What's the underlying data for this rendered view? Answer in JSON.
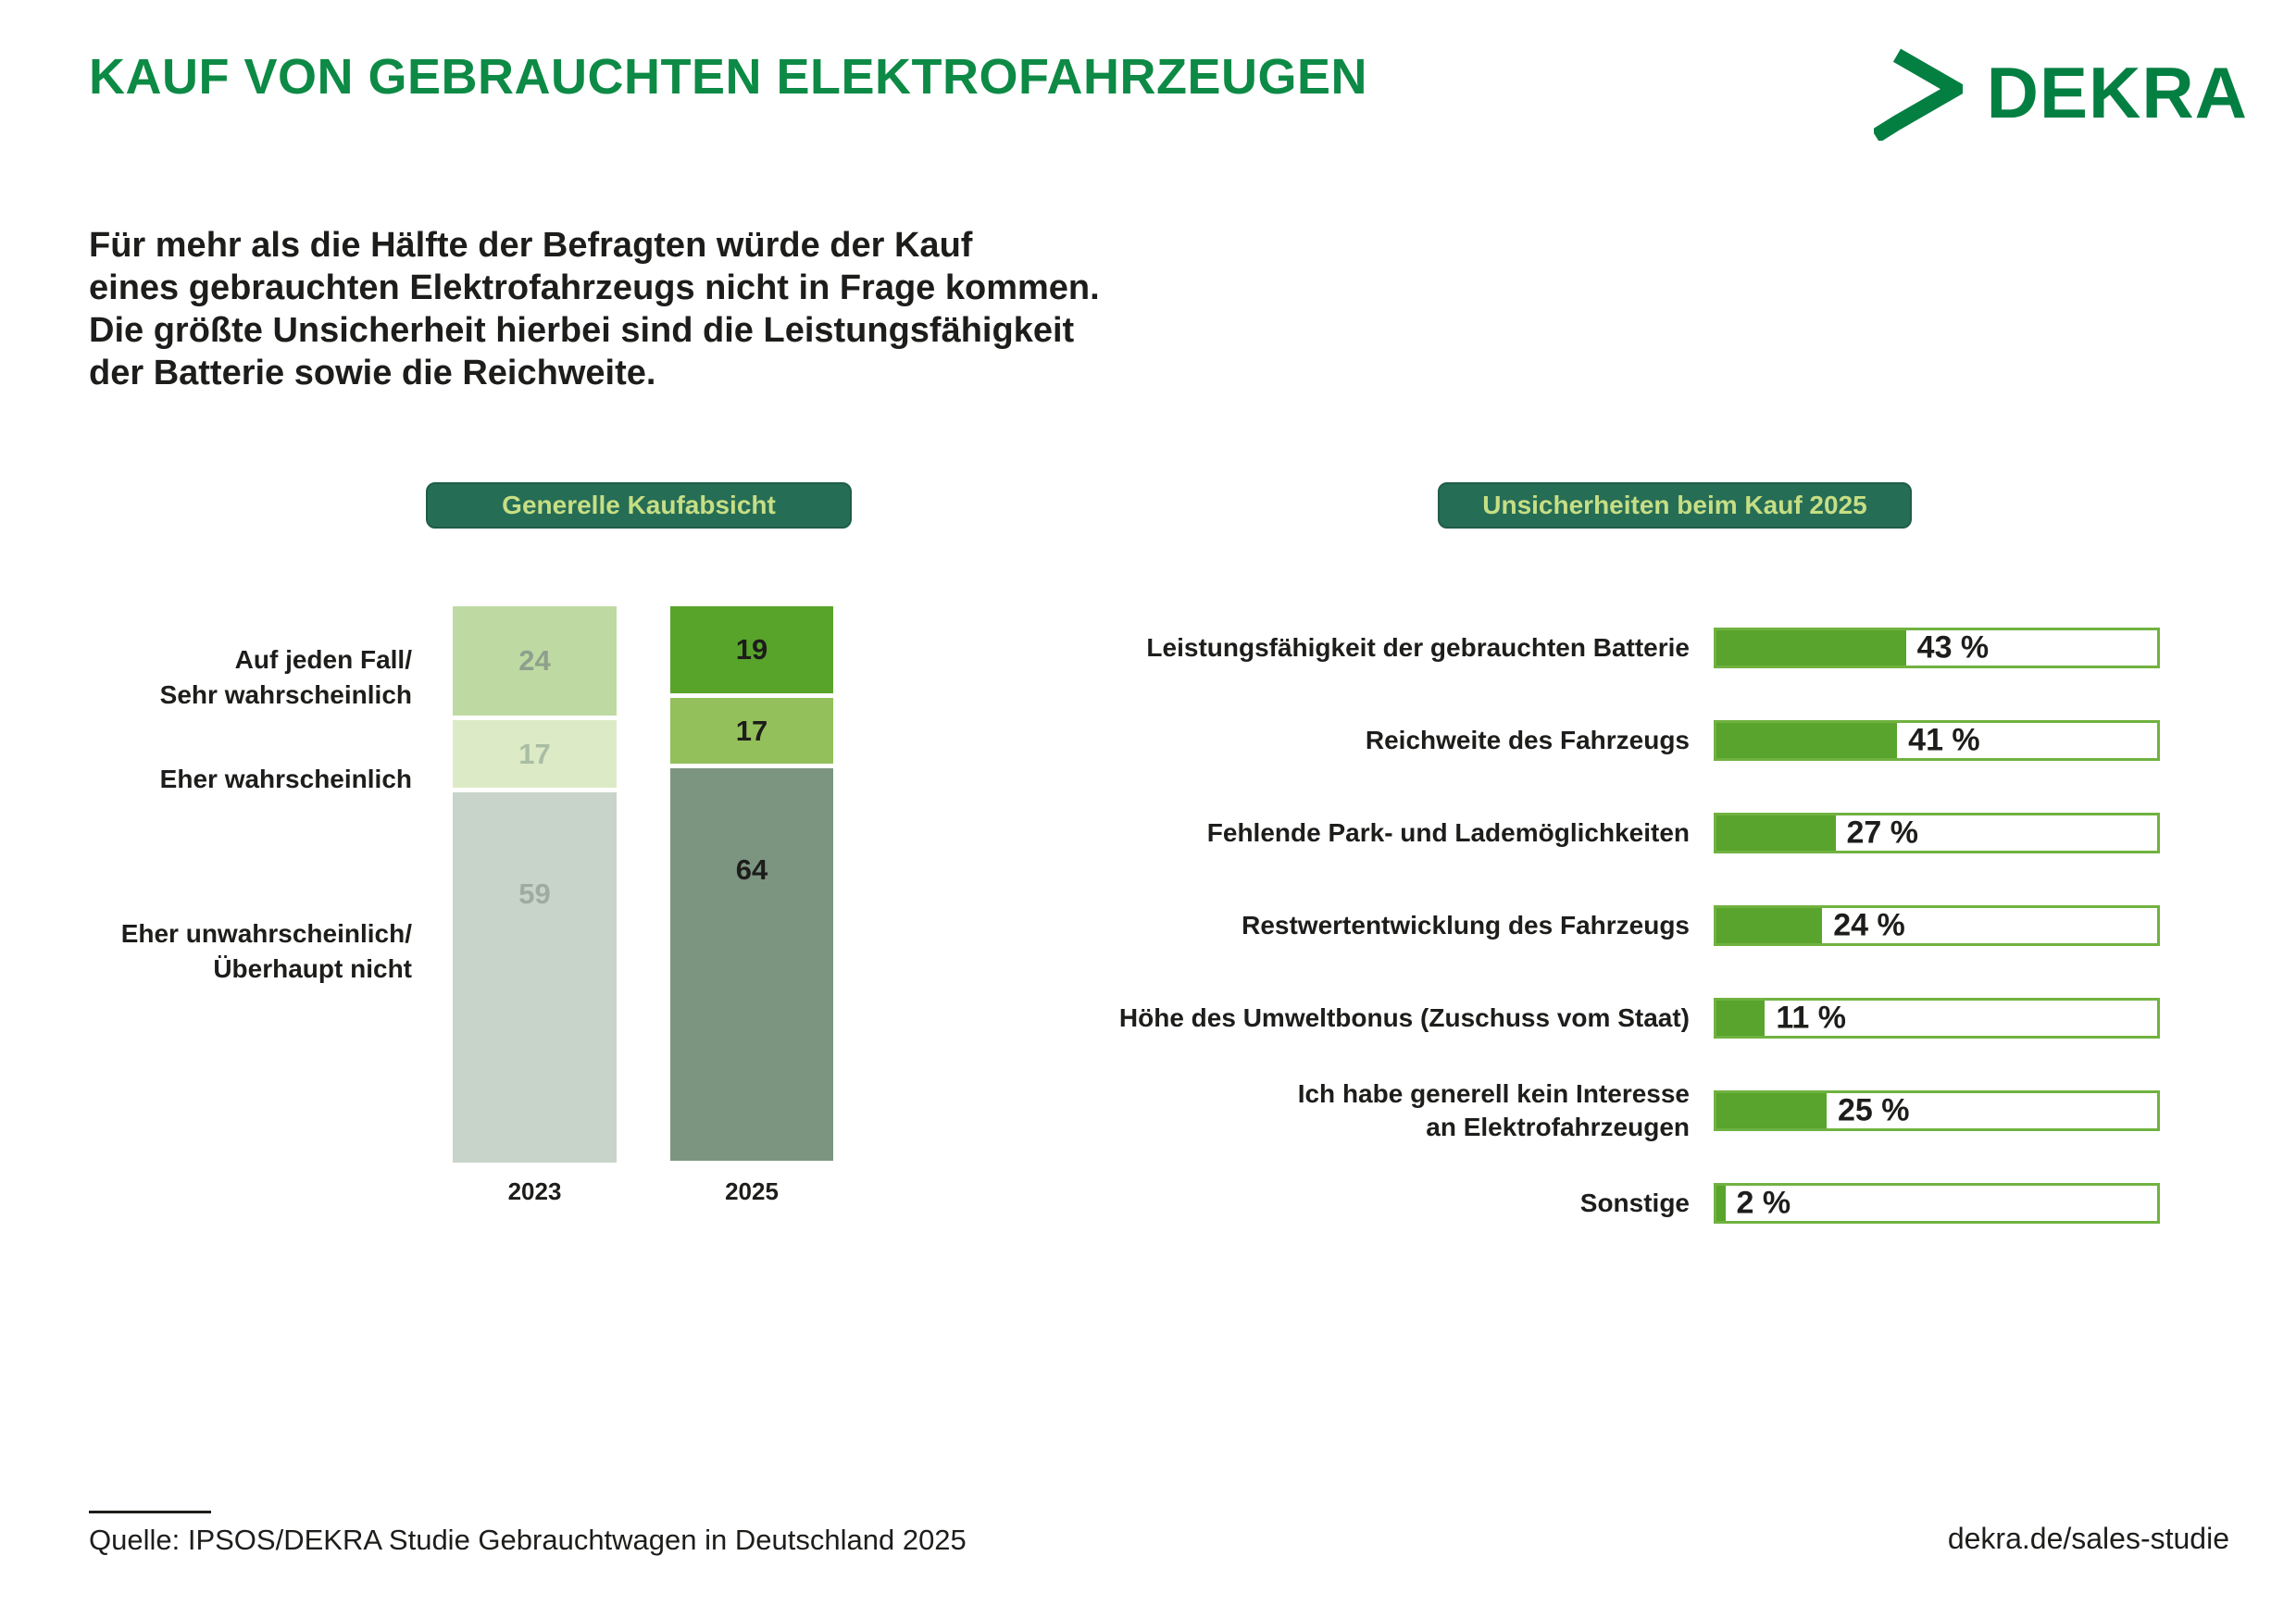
{
  "header": {
    "title": "KAUF VON GEBRAUCHTEN ELEKTROFAHRZEUGEN",
    "logo_text": "DEKRA"
  },
  "intro": {
    "lines": [
      "Für mehr als die Hälfte der Befragten würde der Kauf",
      "eines gebrauchten Elektrofahrzeugs nicht in Frage kommen.",
      "Die größte Unsicherheit hierbei sind die Leistungsfähigkeit",
      "der Batterie sowie die Reichweite."
    ]
  },
  "footer": {
    "source": "Quelle: IPSOS/DEKRA Studie Gebrauchtwagen in Deutschland 2025",
    "link": "dekra.de/sales-studie"
  },
  "colors": {
    "title_green": "#0d8a45",
    "logo_green": "#047f42",
    "badge_bg": "#266d56",
    "badge_text": "#c7de84",
    "bar_fill": "#58a42c",
    "bar_border": "#70b240",
    "text": "#1d1d1b"
  },
  "chart_data": [
    {
      "type": "bar",
      "subtype": "stacked-columns",
      "title": "Generelle Kaufabsicht",
      "unit": "%",
      "ylim": [
        0,
        100
      ],
      "categories": [
        "2023",
        "2025"
      ],
      "row_labels": [
        "Auf jeden Fall/\nSehr wahrscheinlich",
        "Eher wahrscheinlich",
        "Eher unwahrscheinlich/\nÜberhaupt nicht"
      ],
      "series": [
        {
          "name": "Auf jeden Fall/Sehr wahrscheinlich",
          "values": [
            24,
            19
          ]
        },
        {
          "name": "Eher wahrscheinlich",
          "values": [
            17,
            17
          ]
        },
        {
          "name": "Eher unwahrscheinlich/Überhaupt nicht",
          "values": [
            59,
            64
          ]
        }
      ],
      "column_styles": [
        {
          "segment_colors": [
            "#bed9a2",
            "#dcebc6",
            "#c8d4c9"
          ],
          "value_colors": [
            "#8f9f8d",
            "#a9bda3",
            "#9dac9f"
          ]
        },
        {
          "segment_colors": [
            "#58a42b",
            "#93c05a",
            "#7c9580"
          ],
          "value_colors": [
            "#1d1d1b",
            "#1d1d1b",
            "#1d1d1b"
          ]
        }
      ]
    },
    {
      "type": "bar",
      "subtype": "horizontal",
      "title": "Unsicherheiten beim Kauf 2025",
      "unit": "%",
      "xlim": [
        0,
        100
      ],
      "categories": [
        "Leistungsfähigkeit der gebrauchten Batterie",
        "Reichweite des Fahrzeugs",
        "Fehlende Park- und Lademöglichkeiten",
        "Restwertentwicklung des Fahrzeugs",
        "Höhe des Umweltbonus (Zuschuss vom Staat)",
        "Ich habe generell kein Interesse\nan Elektrofahrzeugen",
        "Sonstige"
      ],
      "values": [
        43,
        41,
        27,
        24,
        11,
        25,
        2
      ],
      "value_labels": [
        "43 %",
        "41 %",
        "27 %",
        "24 %",
        "11 %",
        "25 %",
        "2 %"
      ]
    }
  ]
}
